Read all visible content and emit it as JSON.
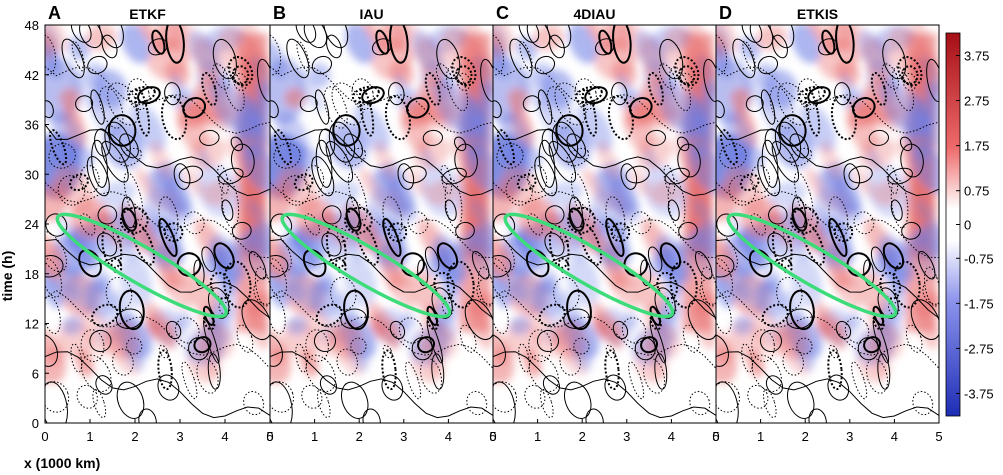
{
  "chart_data": {
    "type": "heatmap",
    "xlabel": "x (1000 km)",
    "ylabel": "time (h)",
    "xlim": [
      0,
      5
    ],
    "ylim": [
      0,
      48
    ],
    "xticks": [
      "0",
      "1",
      "2",
      "3",
      "4",
      "5"
    ],
    "yticks": [
      "0",
      "6",
      "12",
      "18",
      "24",
      "30",
      "36",
      "42",
      "48"
    ],
    "panels": [
      {
        "letter": "A",
        "title": "ETKF"
      },
      {
        "letter": "B",
        "title": "IAU"
      },
      {
        "letter": "C",
        "title": "4DIAU"
      },
      {
        "letter": "D",
        "title": "ETKIS"
      }
    ],
    "colorbar": {
      "ticks": [
        "3.75",
        "2.75",
        "1.75",
        "0.75",
        "0",
        "-0.75",
        "-1.75",
        "-2.75",
        "-3.75"
      ],
      "range": [
        -4.25,
        4.25
      ],
      "colors": {
        "positive": "#a50f15",
        "neutral": "#ffffff",
        "negative": "#1d2db5"
      }
    },
    "highlight_ellipse": {
      "color": "#3ddc7a",
      "description_values": {
        "x_from": 0.4,
        "t_from": 24.5,
        "x_to": 3.9,
        "t_to": 13.5
      }
    }
  }
}
